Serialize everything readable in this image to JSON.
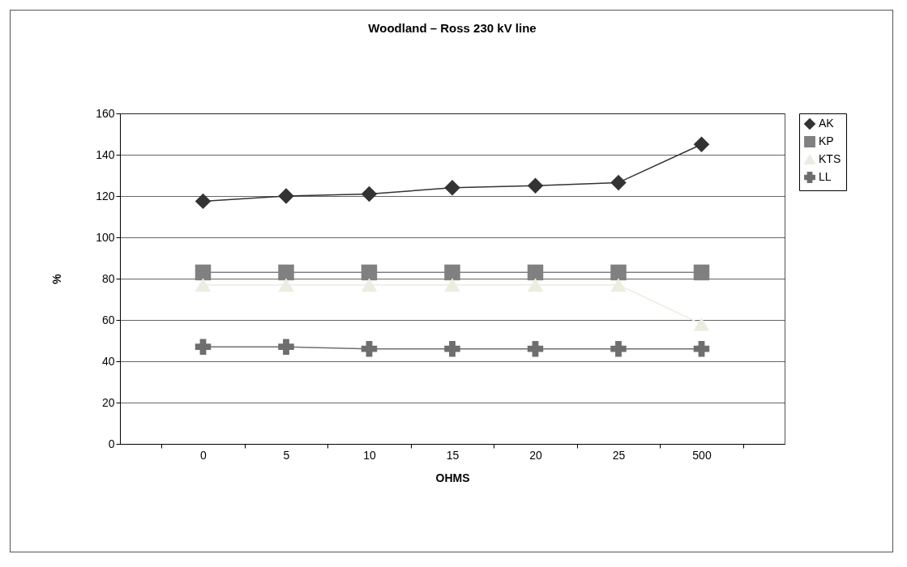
{
  "chart_data": {
    "type": "line",
    "title": "Woodland – Ross 230 kV line",
    "xlabel": "OHMS",
    "ylabel": "%",
    "categories": [
      "0",
      "5",
      "10",
      "15",
      "20",
      "25",
      "500"
    ],
    "series": [
      {
        "name": "AK",
        "color": "#333333",
        "marker": "diamond",
        "values": [
          117.5,
          120,
          121,
          124,
          125,
          126.5,
          145
        ]
      },
      {
        "name": "KP",
        "color": "#808080",
        "marker": "square",
        "values": [
          83,
          83,
          83,
          83,
          83,
          83,
          83
        ]
      },
      {
        "name": "KTS",
        "color": "#ecece0",
        "marker": "triangle",
        "values": [
          77,
          77,
          77,
          77,
          77,
          77,
          58
        ]
      },
      {
        "name": "LL",
        "color": "#6e6e6e",
        "marker": "cross",
        "values": [
          47,
          47,
          46,
          46,
          46,
          46,
          46
        ]
      }
    ],
    "ylim": [
      0,
      160
    ],
    "yticks": [
      0,
      20,
      40,
      60,
      80,
      100,
      120,
      140,
      160
    ],
    "grid": "y",
    "legend": "right"
  }
}
